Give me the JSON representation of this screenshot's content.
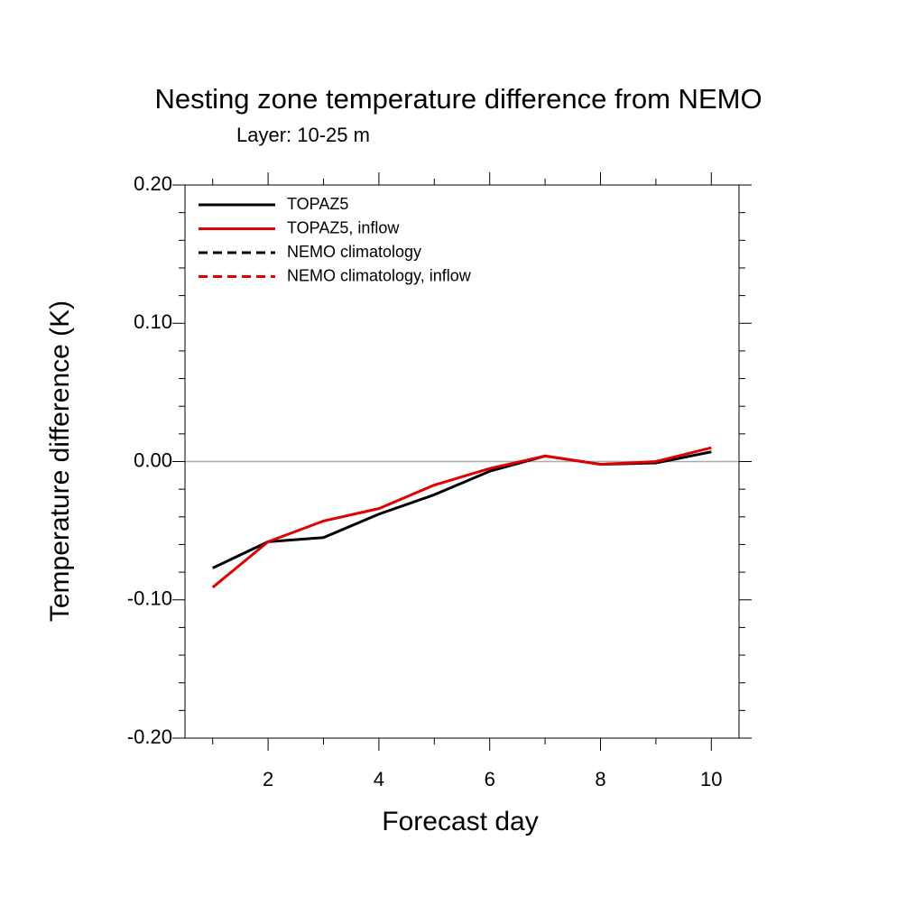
{
  "chart_data": {
    "type": "line",
    "title": "Nesting zone temperature difference from NEMO",
    "subtitle": "Layer: 10-25 m",
    "xlabel": "Forecast day",
    "ylabel": "Temperature difference (K)",
    "x": [
      1,
      2,
      3,
      4,
      5,
      6,
      7,
      8,
      9,
      10
    ],
    "series": [
      {
        "name": "TOPAZ5",
        "color": "#000000",
        "dash": false,
        "values": [
          -0.077,
          -0.058,
          -0.055,
          -0.038,
          -0.024,
          -0.007,
          0.004,
          -0.002,
          -0.001,
          0.007
        ]
      },
      {
        "name": "TOPAZ5, inflow",
        "color": "#e00000",
        "dash": false,
        "values": [
          -0.091,
          -0.058,
          -0.043,
          -0.034,
          -0.017,
          -0.005,
          0.004,
          -0.002,
          0.0,
          0.01
        ]
      },
      {
        "name": "NEMO climatology",
        "color": "#000000",
        "dash": true,
        "values": [
          null,
          null,
          null,
          null,
          null,
          null,
          null,
          null,
          null,
          null
        ]
      },
      {
        "name": "NEMO climatology, inflow",
        "color": "#e00000",
        "dash": true,
        "values": [
          null,
          null,
          null,
          null,
          null,
          null,
          null,
          null,
          null,
          null
        ]
      }
    ],
    "xlim": [
      0.5,
      10.5
    ],
    "xticks": [
      2,
      4,
      6,
      8,
      10
    ],
    "ylim": [
      -0.2,
      0.2
    ],
    "yticks": [
      {
        "value": -0.2,
        "label": "-0.20"
      },
      {
        "value": -0.1,
        "label": "-0.10"
      },
      {
        "value": 0,
        "label": "0.00"
      },
      {
        "value": 0.1,
        "label": "0.10"
      },
      {
        "value": 0.2,
        "label": "0.20"
      }
    ],
    "reference_line": 0,
    "legend": "upper left"
  }
}
